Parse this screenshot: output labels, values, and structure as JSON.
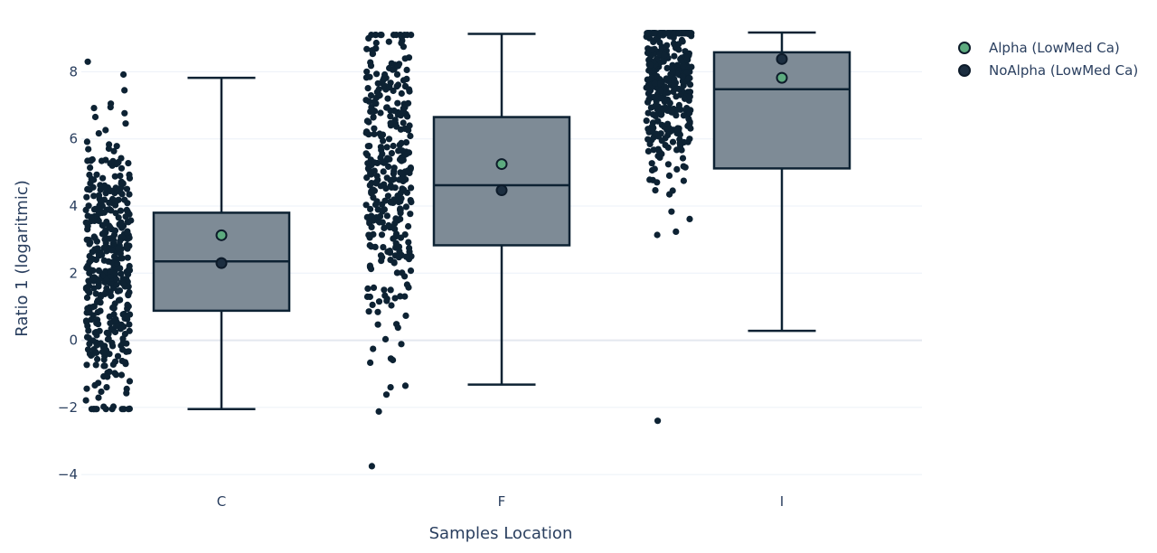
{
  "chart_data": {
    "type": "box",
    "xlabel": "Samples Location",
    "ylabel": "Ratio 1 (logaritmic)",
    "categories": [
      "C",
      "F",
      "I"
    ],
    "ylim": [
      -4.4,
      9.6
    ],
    "yticks": [
      -4,
      -2,
      0,
      2,
      4,
      6,
      8
    ],
    "ytick_labels": [
      "−4",
      "−2",
      "0",
      "2",
      "4",
      "6",
      "8"
    ],
    "grid": true,
    "legend_position": "top-right",
    "boxes": [
      {
        "category": "C",
        "lower_fence": -2.05,
        "q1": 0.88,
        "median": 2.35,
        "q3": 3.8,
        "upper_fence": 7.82
      },
      {
        "category": "F",
        "lower_fence": -1.32,
        "q1": 2.83,
        "median": 4.62,
        "q3": 6.65,
        "upper_fence": 9.13
      },
      {
        "category": "I",
        "lower_fence": 0.28,
        "q1": 5.12,
        "median": 7.48,
        "q3": 8.58,
        "upper_fence": 9.17
      }
    ],
    "points": [
      {
        "category": "C",
        "n": 420,
        "min": -2.05,
        "max": 8.3,
        "center": 2.2,
        "spread": 2.1
      },
      {
        "category": "F",
        "n": 340,
        "min": -3.75,
        "max": 9.1,
        "center": 5.0,
        "spread": 2.5
      },
      {
        "category": "I",
        "n": 380,
        "min": -2.4,
        "max": 9.15,
        "center": 7.8,
        "spread": 1.6
      }
    ],
    "series": [
      {
        "name": "Alpha (LowMed Ca)",
        "color": "#5dab7f",
        "values": [
          3.13,
          5.25,
          7.82
        ]
      },
      {
        "name": "NoAlpha (LowMed Ca)",
        "color": "#1c2e40",
        "values": [
          2.3,
          4.47,
          8.38
        ]
      }
    ],
    "colors": {
      "box_fill": "#7e8b96",
      "box_line": "#0d2233",
      "points": "#0d2233",
      "grid": "#ebf0f8",
      "text": "#2a3f5f"
    }
  }
}
